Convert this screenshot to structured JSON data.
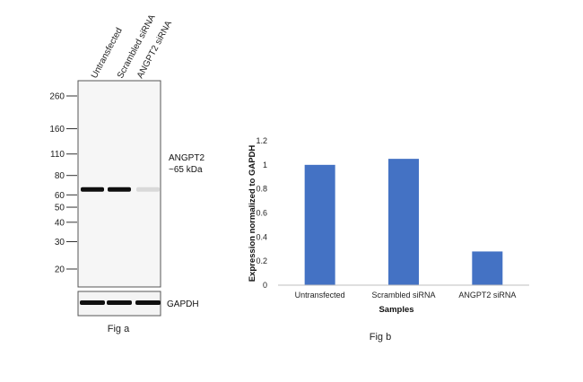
{
  "blot": {
    "lanes": [
      "Untransfected",
      "Scrambled siRNA",
      "ANGPT2 siRNA"
    ],
    "markers": [
      "260",
      "160",
      "110",
      "80",
      "60",
      "50",
      "40",
      "30",
      "20"
    ],
    "marker_kda": [
      260,
      160,
      110,
      80,
      60,
      50,
      40,
      30,
      20
    ],
    "band_label_name": "ANGPT2",
    "band_label_size": "~65 kDa",
    "band_intensity": [
      1.0,
      1.0,
      0.12
    ],
    "loading_label": "GAPDH",
    "loading_intensity": [
      1.0,
      1.0,
      1.0
    ],
    "caption": "Fig a"
  },
  "chart_data": {
    "type": "bar",
    "categories": [
      "Untransfected",
      "Scrambled siRNA",
      "ANGPT2 siRNA"
    ],
    "values": [
      1.0,
      1.05,
      0.28
    ],
    "xlabel": "Samples",
    "ylabel": "Expression  normalized to GAPDH",
    "ylim": [
      0,
      1.2
    ],
    "yticks": [
      0,
      0.2,
      0.4,
      0.6,
      0.8,
      1,
      1.2
    ],
    "ytick_labels": [
      "0",
      "0.2",
      "0.4",
      "0.6",
      "0.8",
      "1",
      "1.2"
    ],
    "grid": false,
    "bar_color": "#4472C4"
  },
  "chart_caption": "Fig b"
}
